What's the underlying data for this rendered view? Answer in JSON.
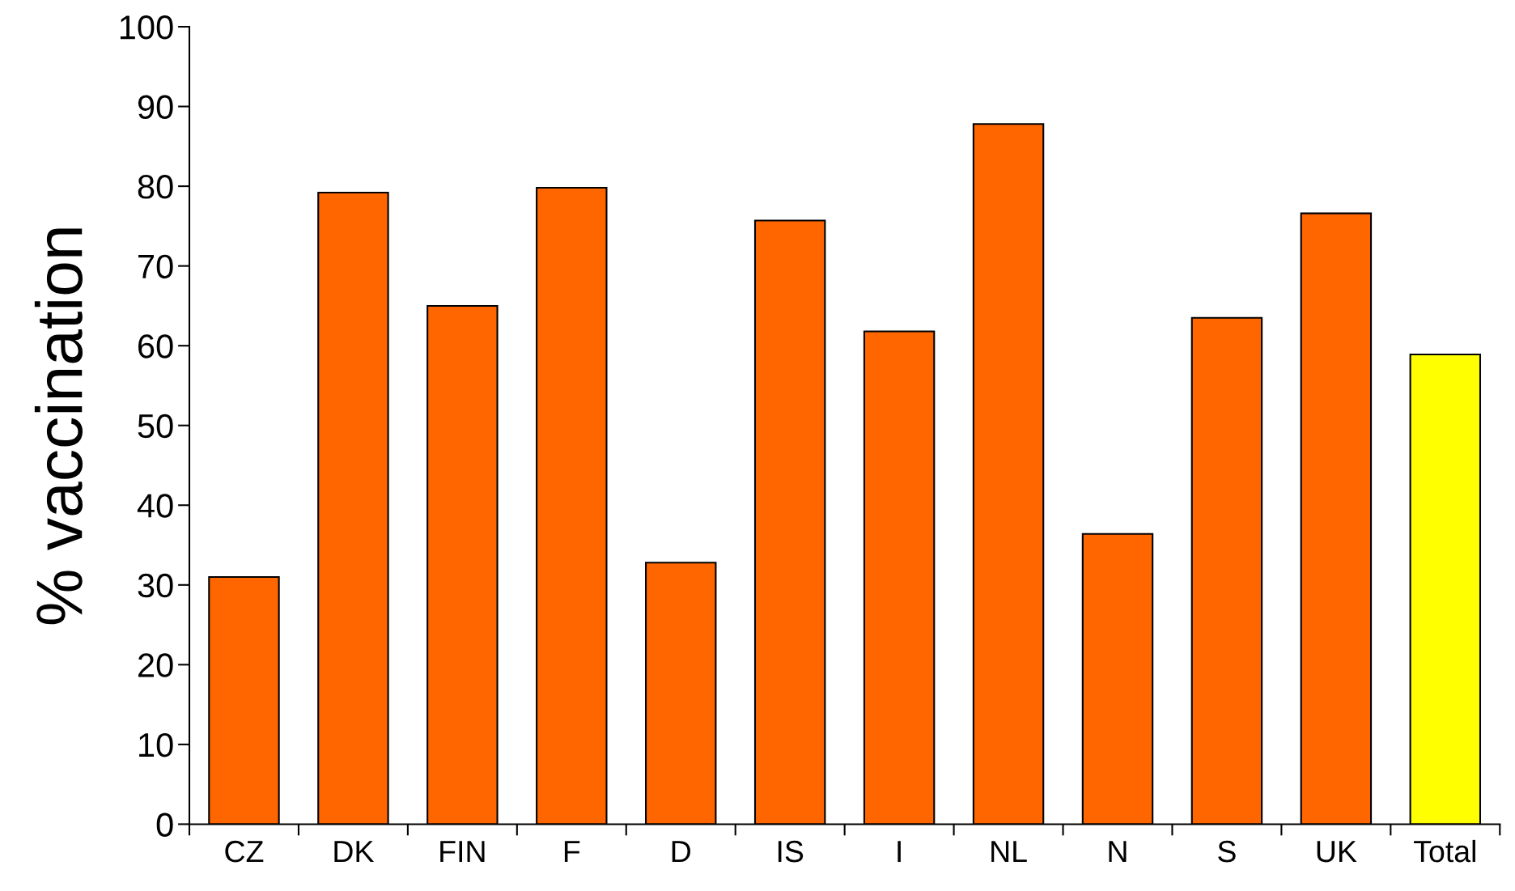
{
  "chart_data": {
    "type": "bar",
    "ylabel": "% vaccination",
    "categories": [
      "CZ",
      "DK",
      "FIN",
      "F",
      "D",
      "IS",
      "I",
      "NL",
      "N",
      "S",
      "UK",
      "Total"
    ],
    "values": [
      31.0,
      79.2,
      65.0,
      79.8,
      32.8,
      75.7,
      61.8,
      87.8,
      36.4,
      63.5,
      76.6,
      58.9
    ],
    "colors": [
      "#ff6600",
      "#ff6600",
      "#ff6600",
      "#ff6600",
      "#ff6600",
      "#ff6600",
      "#ff6600",
      "#ff6600",
      "#ff6600",
      "#ff6600",
      "#ff6600",
      "#ffff00"
    ],
    "ylim": [
      0,
      100
    ],
    "yticks": [
      0,
      10,
      20,
      30,
      40,
      50,
      60,
      70,
      80,
      90,
      100
    ],
    "grid": false,
    "legend": false
  }
}
